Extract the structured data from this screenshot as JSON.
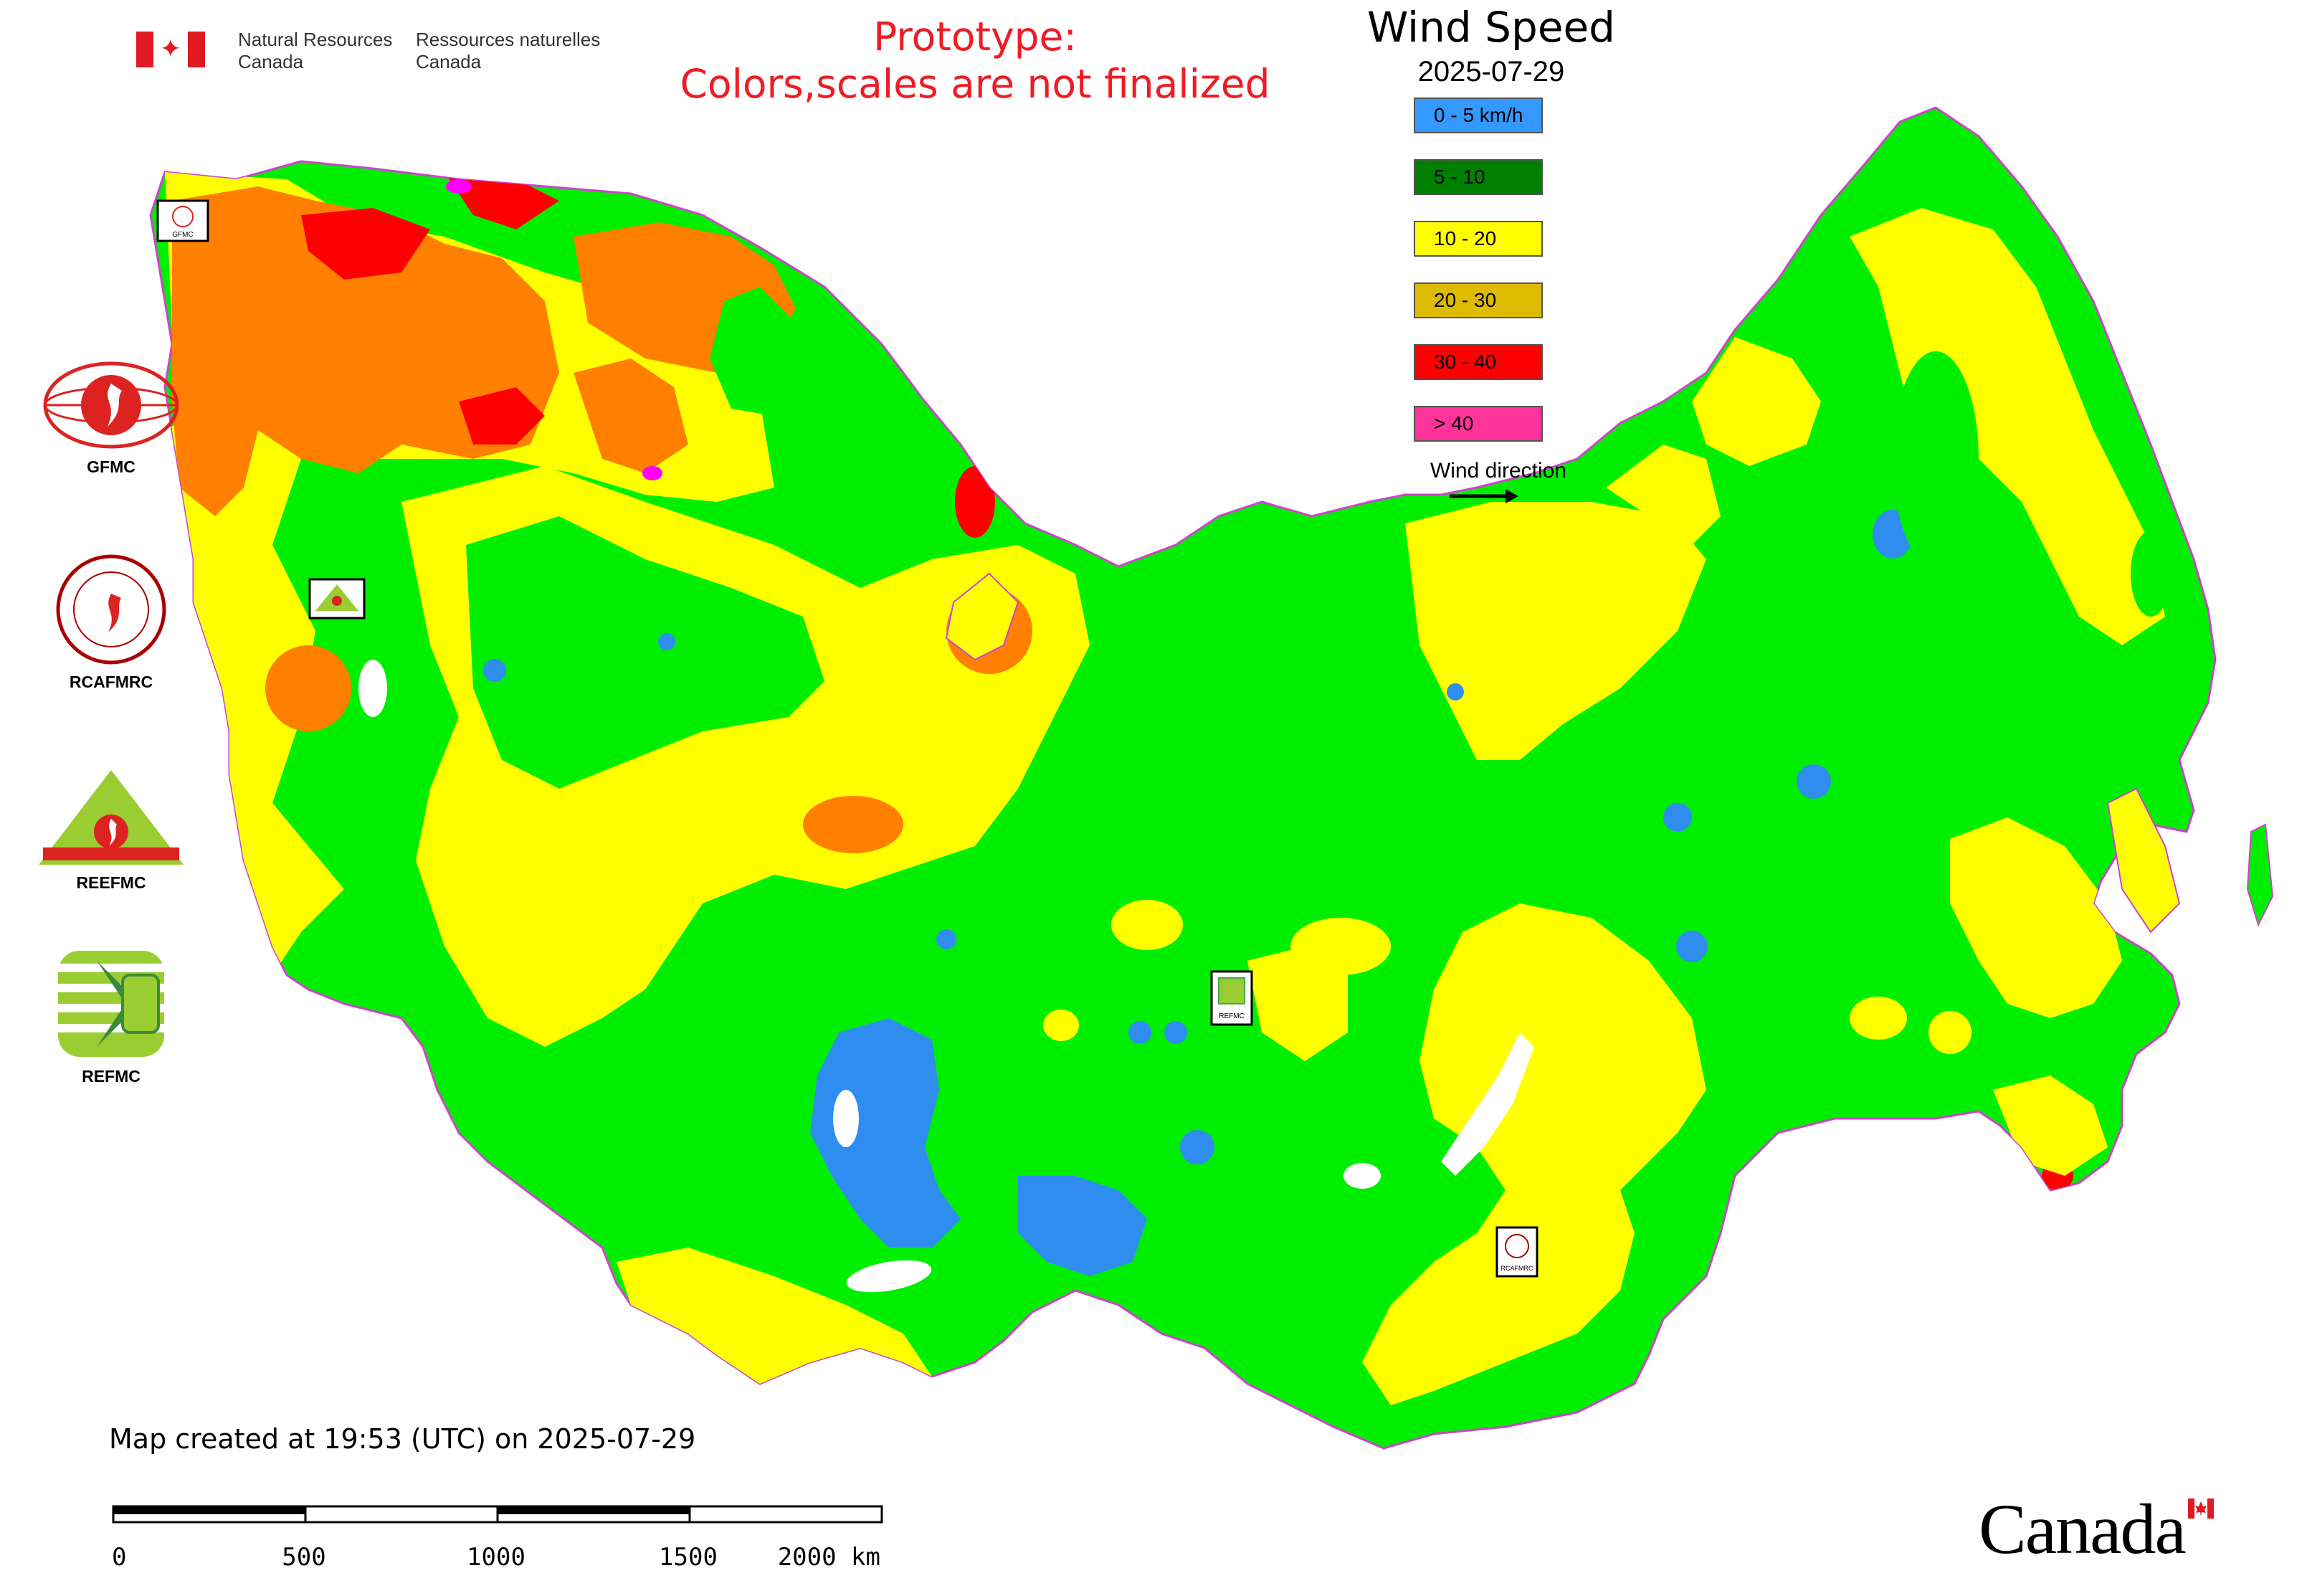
{
  "header": {
    "org_en_line1": "Natural Resources",
    "org_en_line2": "Canada",
    "org_fr_line1": "Ressources naturelles",
    "org_fr_line2": "Canada",
    "prototype_line1": "Prototype:",
    "prototype_line2": "Colors,scales are not finalized",
    "title": "Wind Speed",
    "date": "2025-07-29"
  },
  "legend": {
    "items": [
      {
        "label": "0 - 5 km/h",
        "color": "#3399ff"
      },
      {
        "label": "5 - 10",
        "color": "#008000"
      },
      {
        "label": "10 - 20",
        "color": "#ffff00"
      },
      {
        "label": "20 - 30",
        "color": "#ddbb00"
      },
      {
        "label": "30 - 40",
        "color": "#ff0000"
      },
      {
        "label": "> 40",
        "color": "#ff3399"
      }
    ],
    "wind_direction_label": "Wind direction"
  },
  "logos": [
    {
      "label": "GFMC",
      "icon": "gfmc-logo-icon"
    },
    {
      "label": "RCAFMRC",
      "icon": "rcafmrc-logo-icon"
    },
    {
      "label": "REEFMC",
      "icon": "reefmc-logo-icon"
    },
    {
      "label": "REFMC",
      "icon": "refmc-logo-icon"
    }
  ],
  "map": {
    "zone_colors": {
      "zone_0_5": "#2f8df0",
      "zone_5_10": "#00ee00",
      "zone_10_20": "#ffff00",
      "zone_20_30": "#ff8000",
      "zone_30_40": "#ff0000",
      "zone_over_40": "#ff00ff"
    },
    "markers": [
      {
        "label": "GFMC"
      },
      {
        "label": "REEFMC"
      },
      {
        "label": "REFMC"
      },
      {
        "label": "RCAFMRC"
      }
    ]
  },
  "footer": {
    "created": "Map created at 19:53 (UTC) on 2025-07-29",
    "scale_ticks": [
      "0",
      "500",
      "1000",
      "1500",
      "2000 km"
    ],
    "wordmark": "Canada"
  }
}
